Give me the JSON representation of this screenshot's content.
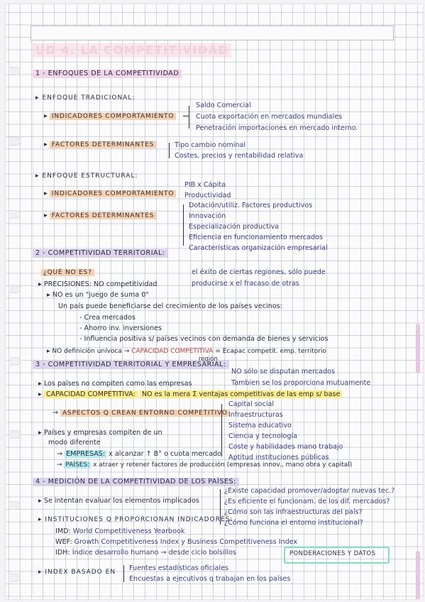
{
  "title": "UD 4. LA COMPETITIVIDAD",
  "s1": {
    "heading": "1 - ENFOQUES DE LA COMPETITIVIDAD",
    "traditional": {
      "label": "ENFOQUE TRADICIONAL:",
      "indicators_label": "INDICADORES COMPORTAMIENTO",
      "indicators": [
        "Saldo Comercial",
        "Cuota exportación en mercados mundiales",
        "Penetración importaciones en mercado interno."
      ],
      "factors_label": "FACTORES DETERMINANTES",
      "factors": [
        "Tipo cambio nominal",
        "Costes, precios y rentabilidad relativa"
      ]
    },
    "structural": {
      "label": "ENFOQUE ESTRUCTURAL:",
      "indicators_label": "INDICADORES COMPORTAMIENTO",
      "indicators": [
        "PIB x Cápita",
        "Productividad"
      ],
      "factors_label": "FACTORES DETERMINANTES",
      "factors": [
        "Dotación/utiliz. Factores productivos",
        "Innovación",
        "Especialización productiva",
        "Eficiencia en funcionamiento mercados",
        "Características organización empresarial"
      ]
    }
  },
  "s2": {
    "heading": "2 - COMPETITIVIDAD TERRITORIAL:",
    "question": "¿QUÉ NO ES?",
    "precisions_label": "PRECISIONES: NO competitividad",
    "precisions": [
      "el éxito de ciertas regiones, sólo puede",
      "producirse x el fracaso de otras"
    ],
    "zero_sum": "NO es un \"juego de suma 0\"",
    "benefit": "Un país puede beneficiarse del crecimiento de los países vecinos:",
    "benefit_items": [
      "Crea mercados",
      "Ahorro inv. inversiones",
      "Influencia positiva s/ países vecinos con demanda de bienes y servicios"
    ],
    "definition_pre": "NO definición unívoca",
    "definition_mid": "CAPACIDAD COMPETITIVA",
    "definition_post": "= Ecapac competit. emp. territorio",
    "definition_tail": "región"
  },
  "s3": {
    "heading": "3 - COMPETITIVIDAD TERRITORIAL Y EMPRESARIAL:",
    "note_top": "NO sólo se disputan mercados",
    "compete": "Los países no compiten como las empresas",
    "compete_tail": "Tambien se los proporciona mutuamente",
    "capacity_label": "CAPACIDAD COMPETITIVA:",
    "capacity_text": "NO es la mera Σ ventajas competitivas de las emp s/ base",
    "aspects_label": "ASPECTOS Q CREAN ENTORNO COMPETITIVO",
    "aspects": [
      "Capital social",
      "Infraestructuras",
      "Sistema educativo",
      "Ciencia y tecnología",
      "Coste y habilidades mano trabajo",
      "Aptitud instituciones públicas"
    ],
    "countries": "Países y empresas compiten de un",
    "countries2": "modo diferente",
    "empresas_label": "EMPRESAS:",
    "empresas_text": "x alcanzar ↑ B° o cuota mercado",
    "paises_label": "PAÍSES:",
    "paises_text": "x atraer y retener factores de producción (empresas innov., mano obra y capital)"
  },
  "s4": {
    "heading": "4 - MEDICIÓN DE LA COMPETITIVIDAD DE LOS PAÍSES:",
    "evaluate": "Se intentan evaluar los elementos implicados",
    "questions": [
      "¿Existe capacidad promover/adoptar nuevas tec.?",
      "¿Es eficiente el funcionam. de los dif. mercados?",
      "¿Cómo son las infraestructuras del país?",
      "¿Cómo funciona el entorno institucional?"
    ],
    "institutions_label": "INSTITUCIONES Q PROPORCIONAN INDICADORES:",
    "institutions": [
      {
        "code": "IMD:",
        "text": "World Competitiveness Yearbook"
      },
      {
        "code": "WEF:",
        "text": "Growth Competitiveness Index y Business Competitiveness Index"
      },
      {
        "code": "IDH:",
        "text": "Índice desarrollo humano → desde ciclo bolsillos"
      }
    ],
    "boxed": "PONDERACIONES Y DATOS",
    "index_label": "INDEX BASADO EN",
    "index_items": [
      "Fuentes estadísticas oficiales",
      "Encuestas a ejecutivos q trabajan en los países"
    ]
  }
}
